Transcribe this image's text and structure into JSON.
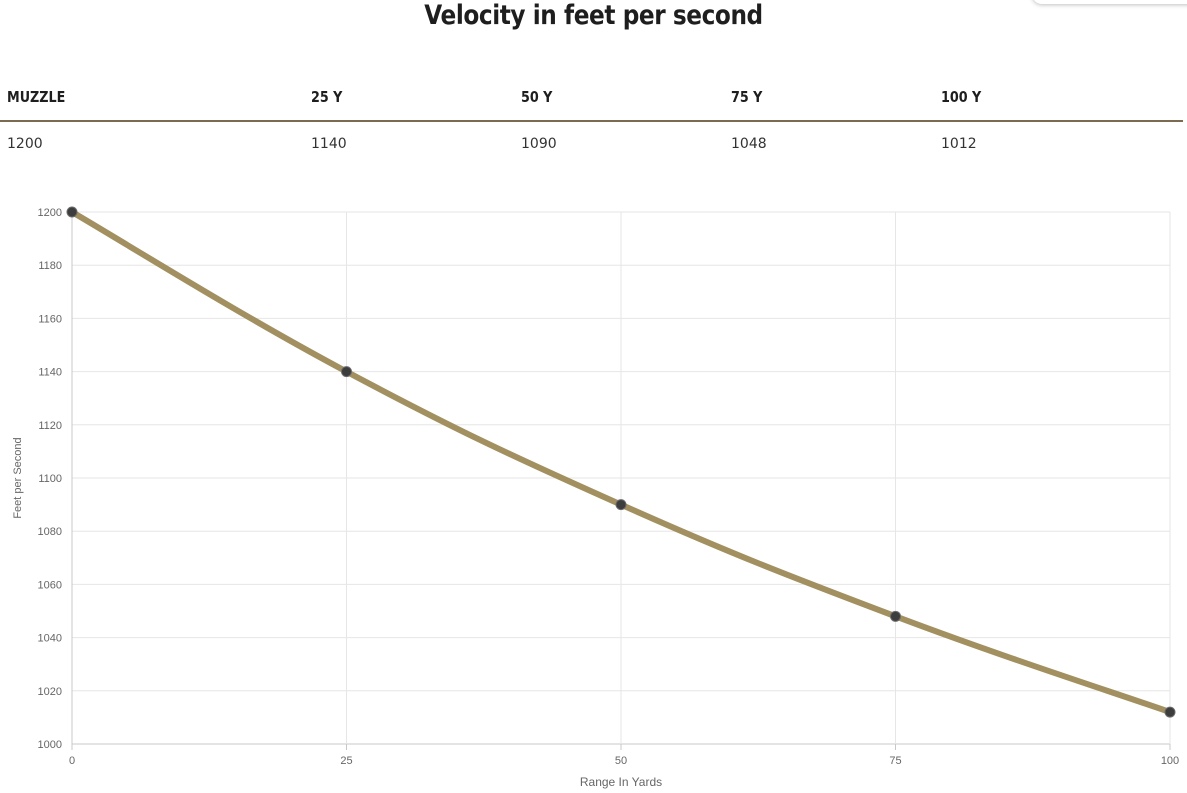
{
  "title": "Velocity in feet per second",
  "table": {
    "headers": [
      "MUZZLE",
      "25 Y",
      "50 Y",
      "75 Y",
      "100 Y"
    ],
    "values": [
      "1200",
      "1140",
      "1090",
      "1048",
      "1012"
    ]
  },
  "chart_data": {
    "type": "line",
    "x": [
      0,
      25,
      50,
      75,
      100
    ],
    "y": [
      1200,
      1140,
      1090,
      1048,
      1012
    ],
    "xlabel": "Range In Yards",
    "ylabel": "Feet per Second",
    "xlim": [
      0,
      100
    ],
    "ylim": [
      1000,
      1200
    ],
    "x_ticks": [
      "0",
      "25",
      "50",
      "75",
      "100"
    ],
    "y_ticks": [
      "1000",
      "1020",
      "1040",
      "1060",
      "1080",
      "1100",
      "1120",
      "1140",
      "1160",
      "1180",
      "1200"
    ],
    "grid": true,
    "legend": "none",
    "line_color": "#a39060",
    "point_color": "#3d3d3d"
  }
}
